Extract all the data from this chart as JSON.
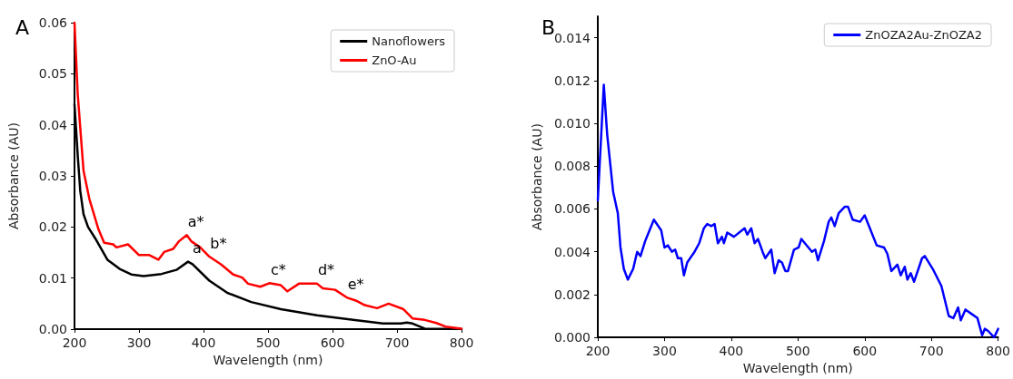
{
  "chart_data": [
    {
      "type": "line",
      "title": "A",
      "xlabel": "Wavelength (nm)",
      "ylabel": "Absorbance (AU)",
      "xlim": [
        200,
        800
      ],
      "xticks": [
        200,
        300,
        400,
        500,
        600,
        700,
        800
      ],
      "ylim": [
        0,
        0.06
      ],
      "yticks": [
        {
          "value": 0,
          "label": "0.00"
        },
        0.01,
        0.02,
        0.03,
        0.04,
        0.05,
        0.06
      ],
      "grid": false,
      "legend": "top right",
      "marker": "none",
      "line_style": "solid",
      "series": [
        {
          "name": "Nanoflowers",
          "color": "#000000",
          "x": [
            200,
            205,
            209,
            214,
            221,
            232,
            251,
            270,
            288,
            307,
            335,
            358,
            376,
            383,
            409,
            437,
            474,
            520,
            576,
            632,
            678,
            706,
            715,
            724,
            743,
            800
          ],
          "values": [
            0.044,
            0.034,
            0.027,
            0.0225,
            0.02,
            0.0178,
            0.0136,
            0.0118,
            0.0107,
            0.0104,
            0.0108,
            0.0116,
            0.0132,
            0.0127,
            0.0095,
            0.0071,
            0.0053,
            0.0039,
            0.0027,
            0.0018,
            0.0011,
            0.0011,
            0.0013,
            0.0011,
            0.0001,
            0
          ]
        },
        {
          "name": "ZnO-Au",
          "color": "#ff0000",
          "x": [
            200,
            205,
            214,
            223,
            237,
            246,
            260,
            265,
            283,
            300,
            316,
            330,
            339,
            353,
            362,
            374,
            381,
            395,
            409,
            427,
            446,
            460,
            469,
            488,
            502,
            520,
            530,
            548,
            576,
            585,
            604,
            622,
            636,
            650,
            669,
            687,
            710,
            724,
            743,
            761,
            775,
            800
          ],
          "values": [
            0.06,
            0.046,
            0.031,
            0.0255,
            0.0196,
            0.0169,
            0.0166,
            0.016,
            0.0166,
            0.0145,
            0.0145,
            0.0136,
            0.0151,
            0.0157,
            0.0172,
            0.0184,
            0.0172,
            0.016,
            0.0142,
            0.0127,
            0.0107,
            0.0101,
            0.0089,
            0.0083,
            0.009,
            0.0086,
            0.0074,
            0.0089,
            0.0089,
            0.008,
            0.0077,
            0.0062,
            0.0056,
            0.0047,
            0.0041,
            0.005,
            0.0039,
            0.0021,
            0.0018,
            0.0012,
            0.0005,
            0.0001
          ]
        }
      ],
      "annotations": [
        {
          "text": "a*",
          "x": 374,
          "y": 0.0184
        },
        {
          "text": "a",
          "x": 376,
          "y": 0.0132
        },
        {
          "text": "b*",
          "x": 409,
          "y": 0.0142
        },
        {
          "text": "c*",
          "x": 502,
          "y": 0.009
        },
        {
          "text": "d*",
          "x": 576,
          "y": 0.0089
        },
        {
          "text": "e*",
          "x": 622,
          "y": 0.0062
        }
      ]
    },
    {
      "type": "line",
      "title": "B",
      "xlabel": "Wavelength (nm)",
      "ylabel": "Absorbance (AU)",
      "xlim": [
        200,
        800
      ],
      "xticks": [
        200,
        300,
        400,
        500,
        600,
        700,
        800
      ],
      "ylim": [
        0,
        0.015
      ],
      "yticks": [
        {
          "value": 0,
          "label": "0.000"
        },
        {
          "value": 0.002,
          "label": "0.002"
        },
        {
          "value": 0.004,
          "label": "0.004"
        },
        {
          "value": 0.006,
          "label": "0.006"
        },
        {
          "value": 0.008,
          "label": "0.008"
        },
        {
          "value": 0.01,
          "label": "0.010"
        },
        {
          "value": 0.012,
          "label": "0.012"
        },
        {
          "value": 0.014,
          "label": "0.014"
        }
      ],
      "grid": false,
      "legend": "top right",
      "marker": "none",
      "line_style": "solid",
      "series": [
        {
          "name": "ZnOZA2Au-ZnOZA2",
          "color": "#0000ff",
          "x": [
            200,
            209,
            214,
            223,
            230,
            234,
            239,
            245,
            253,
            259,
            264,
            271,
            284,
            295,
            300,
            305,
            311,
            316,
            320,
            325,
            329,
            334,
            345,
            352,
            359,
            364,
            370,
            375,
            380,
            386,
            389,
            394,
            404,
            420,
            424,
            430,
            435,
            440,
            447,
            451,
            460,
            465,
            471,
            476,
            481,
            485,
            494,
            501,
            505,
            521,
            526,
            530,
            539,
            546,
            550,
            555,
            561,
            570,
            575,
            582,
            593,
            600,
            609,
            618,
            629,
            634,
            640,
            649,
            654,
            660,
            664,
            669,
            674,
            686,
            690,
            702,
            715,
            726,
            733,
            740,
            744,
            751,
            760,
            769,
            776,
            780,
            785,
            794,
            800
          ],
          "values": [
            0.0064,
            0.0118,
            0.0095,
            0.0068,
            0.0058,
            0.0042,
            0.0032,
            0.0027,
            0.0032,
            0.004,
            0.0038,
            0.0045,
            0.0055,
            0.005,
            0.0042,
            0.0043,
            0.004,
            0.0041,
            0.0037,
            0.0037,
            0.0029,
            0.0035,
            0.004,
            0.0044,
            0.0051,
            0.0053,
            0.0052,
            0.0053,
            0.0044,
            0.0047,
            0.0044,
            0.0049,
            0.0047,
            0.0051,
            0.0048,
            0.0051,
            0.0044,
            0.0046,
            0.004,
            0.0037,
            0.0041,
            0.003,
            0.0036,
            0.0035,
            0.0031,
            0.0031,
            0.0041,
            0.0042,
            0.0046,
            0.004,
            0.0041,
            0.0036,
            0.0045,
            0.0054,
            0.0056,
            0.0052,
            0.0058,
            0.0061,
            0.0061,
            0.0055,
            0.0054,
            0.0057,
            0.005,
            0.0043,
            0.0042,
            0.0039,
            0.0031,
            0.0034,
            0.0029,
            0.0033,
            0.0027,
            0.003,
            0.0026,
            0.0037,
            0.0038,
            0.0032,
            0.0024,
            0.001,
            0.0009,
            0.0014,
            0.0008,
            0.0013,
            0.0011,
            0.0009,
            0.0001,
            0.0004,
            0.0003,
            0,
            0.0004
          ]
        }
      ]
    }
  ]
}
